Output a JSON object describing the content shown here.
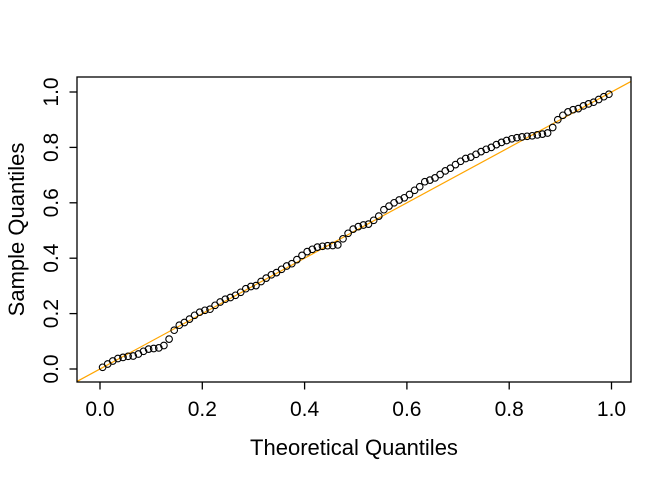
{
  "figure": {
    "background": "#ffffff",
    "axis_color": "#000000",
    "point_color": "#000000",
    "ref_line_color": "#FFA500"
  },
  "chart_data": {
    "type": "scatter",
    "title": "",
    "xlabel": "Theoretical Quantiles",
    "ylabel": "Sample Quantiles",
    "xlim": [
      -0.045,
      1.04
    ],
    "ylim": [
      -0.045,
      1.055
    ],
    "grid": false,
    "legend": null,
    "x_ticks": [
      0,
      0.2,
      0.4,
      0.6,
      0.8,
      1.0
    ],
    "x_tick_labels": [
      "0.0",
      "0.2",
      "0.4",
      "0.6",
      "0.8",
      "1.0"
    ],
    "y_ticks": [
      0,
      0.2,
      0.4,
      0.6,
      0.8,
      1.0
    ],
    "y_tick_labels": [
      "0.0",
      "0.2",
      "0.4",
      "0.6",
      "0.8",
      "1.0"
    ],
    "point_style": {
      "shape": "open-circle",
      "stroke": "#000000",
      "radius_px": 3.3,
      "stroke_width": 1.1
    },
    "ref_line": {
      "type": "identity",
      "slope": 1,
      "intercept": 0,
      "color": "#FFA500",
      "width": 1.2
    },
    "x": [
      0.005,
      0.015,
      0.025,
      0.035,
      0.045,
      0.055,
      0.065,
      0.075,
      0.085,
      0.095,
      0.105,
      0.115,
      0.125,
      0.135,
      0.145,
      0.155,
      0.165,
      0.175,
      0.185,
      0.195,
      0.205,
      0.215,
      0.225,
      0.235,
      0.245,
      0.255,
      0.265,
      0.275,
      0.285,
      0.295,
      0.305,
      0.315,
      0.325,
      0.335,
      0.345,
      0.355,
      0.365,
      0.375,
      0.385,
      0.395,
      0.405,
      0.415,
      0.425,
      0.435,
      0.445,
      0.455,
      0.465,
      0.475,
      0.485,
      0.495,
      0.505,
      0.515,
      0.525,
      0.535,
      0.545,
      0.555,
      0.565,
      0.575,
      0.585,
      0.595,
      0.605,
      0.615,
      0.625,
      0.635,
      0.645,
      0.655,
      0.665,
      0.675,
      0.685,
      0.695,
      0.705,
      0.715,
      0.725,
      0.735,
      0.745,
      0.755,
      0.765,
      0.775,
      0.785,
      0.795,
      0.805,
      0.815,
      0.825,
      0.835,
      0.845,
      0.855,
      0.865,
      0.875,
      0.885,
      0.895,
      0.905,
      0.915,
      0.925,
      0.935,
      0.945,
      0.955,
      0.965,
      0.975,
      0.985,
      0.995
    ],
    "y": [
      0.006,
      0.018,
      0.029,
      0.038,
      0.042,
      0.046,
      0.047,
      0.054,
      0.064,
      0.072,
      0.074,
      0.076,
      0.085,
      0.108,
      0.14,
      0.158,
      0.168,
      0.18,
      0.194,
      0.205,
      0.212,
      0.216,
      0.23,
      0.242,
      0.252,
      0.258,
      0.266,
      0.277,
      0.29,
      0.298,
      0.301,
      0.316,
      0.328,
      0.34,
      0.348,
      0.36,
      0.372,
      0.38,
      0.395,
      0.41,
      0.424,
      0.432,
      0.44,
      0.443,
      0.445,
      0.446,
      0.448,
      0.47,
      0.49,
      0.505,
      0.514,
      0.52,
      0.523,
      0.537,
      0.552,
      0.575,
      0.588,
      0.6,
      0.61,
      0.618,
      0.63,
      0.645,
      0.658,
      0.676,
      0.682,
      0.69,
      0.702,
      0.715,
      0.725,
      0.738,
      0.75,
      0.76,
      0.765,
      0.775,
      0.785,
      0.793,
      0.8,
      0.81,
      0.818,
      0.825,
      0.831,
      0.835,
      0.838,
      0.84,
      0.842,
      0.845,
      0.848,
      0.852,
      0.872,
      0.9,
      0.916,
      0.928,
      0.936,
      0.94,
      0.95,
      0.957,
      0.963,
      0.973,
      0.983,
      0.992
    ]
  }
}
